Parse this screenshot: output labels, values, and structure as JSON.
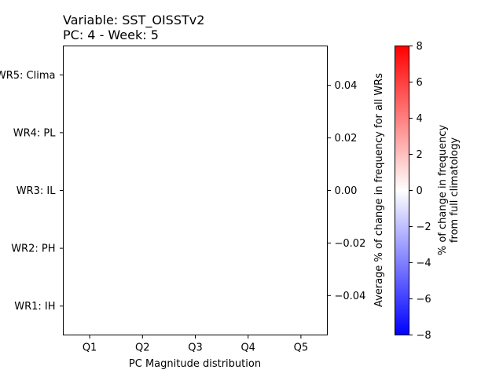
{
  "chart_data": {
    "type": "heatmap",
    "title": "Variable: SST_OISSTv2\nPC: 4 - Week: 5",
    "title_lines": [
      "Variable: SST_OISSTv2",
      "PC: 4 - Week: 5"
    ],
    "xlabel": "PC Magnitude distribution",
    "x_categories": [
      "Q1",
      "Q2",
      "Q3",
      "Q4",
      "Q5"
    ],
    "y_categories": [
      "WR1: IH",
      "WR2: PH",
      "WR3: IL",
      "WR4: PL",
      "WR5: Clima"
    ],
    "values": [],
    "right_axis": {
      "label": "Average % of change in frequency for all WRs",
      "ticks": [
        -0.04,
        -0.02,
        0.0,
        0.02,
        0.04
      ],
      "tick_labels": [
        "−0.04",
        "−0.02",
        "0.00",
        "0.02",
        "0.04"
      ],
      "ylim": [
        -0.055,
        0.055
      ]
    },
    "colorbar": {
      "label_lines": [
        "% of change in frequency",
        "from full climatology"
      ],
      "ticks": [
        -8,
        -6,
        -4,
        -2,
        0,
        2,
        4,
        6,
        8
      ],
      "tick_labels": [
        "−8",
        "−6",
        "−4",
        "−2",
        "0",
        "2",
        "4",
        "6",
        "8"
      ],
      "range": [
        -8,
        8
      ],
      "colormap": [
        "#0000ff",
        "#ffffff",
        "#ff0000"
      ]
    },
    "grid": false
  }
}
